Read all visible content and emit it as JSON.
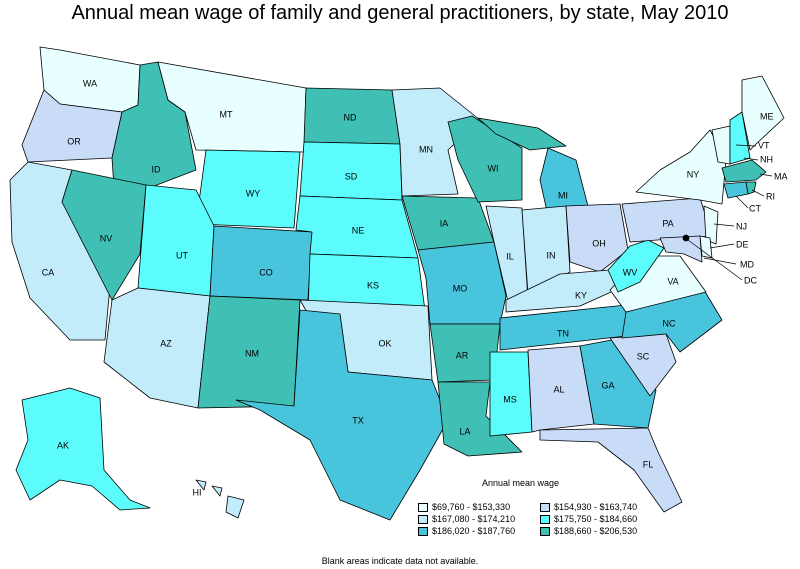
{
  "title": "Annual mean wage of family and general practitioners, by state, May 2010",
  "legend": {
    "title": "Annual mean wage",
    "items": [
      {
        "range": "$69,760 - $153,330",
        "color": "#e8ffff"
      },
      {
        "range": "$154,930 - $163,740",
        "color": "#c8dcf8"
      },
      {
        "range": "$167,080 - $174,210",
        "color": "#c2ecfa"
      },
      {
        "range": "$175,750 - $184,660",
        "color": "#5cfcfc"
      },
      {
        "range": "$186,020 - $187,760",
        "color": "#48c4dc"
      },
      {
        "range": "$188,660 - $206,530",
        "color": "#40c0b4"
      }
    ]
  },
  "note": "Blank areas indicate data not available.",
  "states": {
    "WA": "WA",
    "OR": "OR",
    "CA": "CA",
    "ID": "ID",
    "NV": "NV",
    "MT": "MT",
    "WY": "WY",
    "UT": "UT",
    "AZ": "AZ",
    "CO": "CO",
    "NM": "NM",
    "ND": "ND",
    "SD": "SD",
    "NE": "NE",
    "KS": "KS",
    "OK": "OK",
    "TX": "TX",
    "MN": "MN",
    "IA": "IA",
    "MO": "MO",
    "AR": "AR",
    "LA": "LA",
    "WI": "WI",
    "IL": "IL",
    "MS": "MS",
    "MI": "MI",
    "IN": "IN",
    "KY": "KY",
    "TN": "TN",
    "AL": "AL",
    "OH": "OH",
    "WV": "WV",
    "VA": "VA",
    "NC": "NC",
    "SC": "SC",
    "GA": "GA",
    "FL": "FL",
    "PA": "PA",
    "NY": "NY",
    "ME": "ME",
    "VT": "VT",
    "NH": "NH",
    "MA": "MA",
    "CT": "CT",
    "RI": "RI",
    "NJ": "NJ",
    "DE": "DE",
    "MD": "MD",
    "DC": "DC",
    "AK": "AK",
    "HI": "HI"
  }
}
